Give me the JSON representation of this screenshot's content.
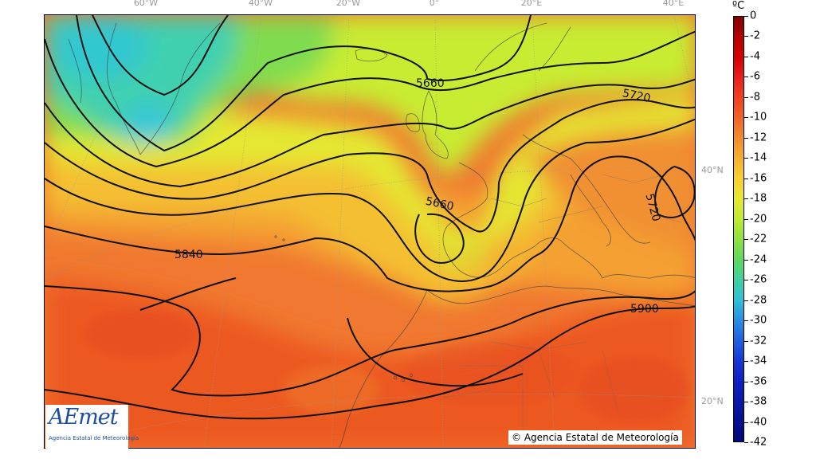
{
  "map": {
    "unit_label": "ºC",
    "longitude_labels": [
      "60°W",
      "40°W",
      "20°W",
      "0°",
      "20°E",
      "40°E"
    ],
    "latitude_labels": [
      "40°N",
      "20°N"
    ],
    "isohypse_labels": [
      "5660",
      "5720",
      "5660",
      "5720",
      "5840",
      "5900"
    ],
    "colorbar": {
      "labels": [
        "0",
        "-2",
        "-4",
        "-6",
        "-8",
        "-10",
        "-12",
        "-14",
        "-16",
        "-18",
        "-20",
        "-22",
        "-24",
        "-26",
        "-28",
        "-30",
        "-32",
        "-34",
        "-36",
        "-38",
        "-40",
        "-42"
      ],
      "colors": [
        "#7f0000",
        "#b30000",
        "#d40000",
        "#e82020",
        "#f04020",
        "#f06428",
        "#f08c30",
        "#f4b030",
        "#f8d030",
        "#e8e830",
        "#c0ec30",
        "#90e040",
        "#60d860",
        "#40d0a0",
        "#30c0d8",
        "#2890e0",
        "#2060e0",
        "#1838d0",
        "#1020c0",
        "#0818a8",
        "#041090",
        "#020878"
      ]
    },
    "logo": {
      "name": "AEmet",
      "subtitle": "Agencia Estatal de Meteorología"
    },
    "copyright": "© Agencia Estatal de Meteorología"
  }
}
